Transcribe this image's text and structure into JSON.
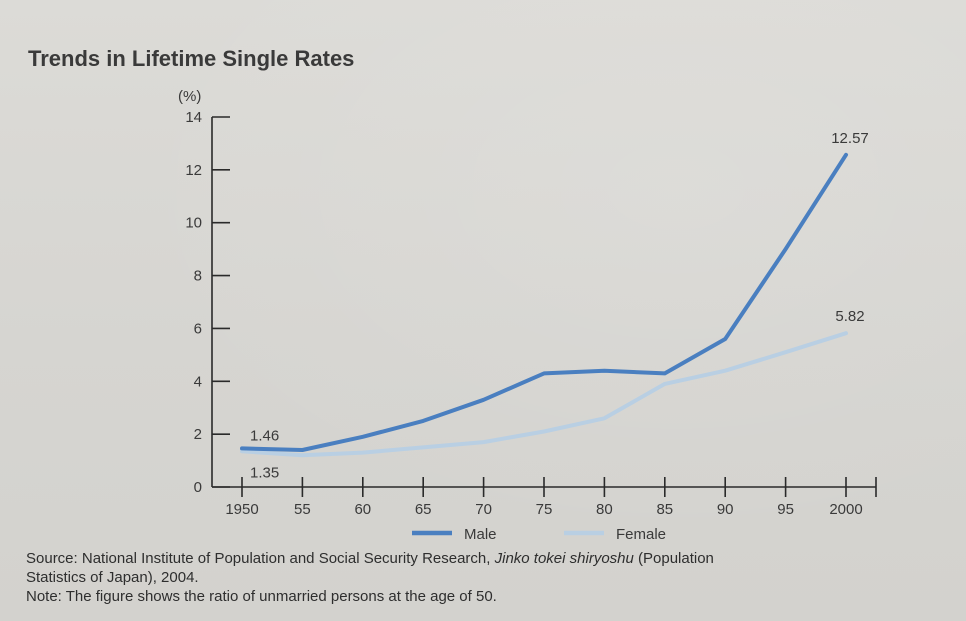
{
  "title": "Trends in Lifetime Single Rates",
  "chart_data": {
    "type": "line",
    "title": "Trends in Lifetime Single Rates",
    "ylabel": "(%)",
    "xlabel": "",
    "x": [
      1950,
      1955,
      1960,
      1965,
      1970,
      1975,
      1980,
      1985,
      1990,
      1995,
      2000
    ],
    "x_tick_labels": [
      "1950",
      "55",
      "60",
      "65",
      "70",
      "75",
      "80",
      "85",
      "90",
      "95",
      "2000"
    ],
    "ylim": [
      0,
      14
    ],
    "y_ticks": [
      0,
      2,
      4,
      6,
      8,
      10,
      12,
      14
    ],
    "grid": false,
    "legend_position": "bottom",
    "series": [
      {
        "name": "Male",
        "color": "#4a7fc0",
        "values": [
          1.46,
          1.4,
          1.9,
          2.5,
          3.3,
          4.3,
          4.4,
          4.3,
          5.6,
          9.0,
          12.57
        ]
      },
      {
        "name": "Female",
        "color": "#b9cfe3",
        "values": [
          1.35,
          1.2,
          1.3,
          1.5,
          1.7,
          2.1,
          2.6,
          3.9,
          4.4,
          5.1,
          5.82
        ]
      }
    ],
    "annotations": [
      {
        "series": "Male",
        "x": 1950,
        "text": "1.46"
      },
      {
        "series": "Female",
        "x": 1950,
        "text": "1.35"
      },
      {
        "series": "Male",
        "x": 2000,
        "text": "12.57"
      },
      {
        "series": "Female",
        "x": 2000,
        "text": "5.82"
      }
    ]
  },
  "footer": {
    "source_prefix": "Source: National Institute of Population and Social Security Research, ",
    "source_italic": "Jinko tokei shiryoshu",
    "source_suffix": " (Population",
    "source_line2": "Statistics of Japan), 2004.",
    "note": "Note: The figure shows the ratio of unmarried persons at the age of 50."
  }
}
